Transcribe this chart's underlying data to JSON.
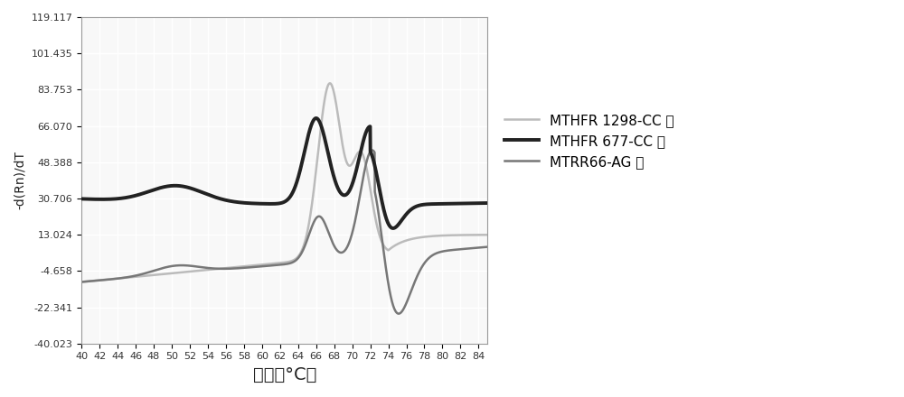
{
  "xlabel": "温度（°C）",
  "ylabel": "-d(Rn)/dT",
  "xlim": [
    40,
    85
  ],
  "ylim": [
    -40.023,
    119.117
  ],
  "xticks": [
    40,
    42,
    44,
    46,
    48,
    50,
    52,
    54,
    56,
    58,
    60,
    62,
    64,
    66,
    68,
    70,
    72,
    74,
    76,
    78,
    80,
    82,
    84
  ],
  "yticks": [
    -40.023,
    -22.341,
    -4.658,
    13.024,
    30.706,
    48.388,
    66.07,
    83.753,
    101.435,
    119.117
  ],
  "ytick_labels": [
    "-40.023",
    "-22.341",
    "-4.658",
    "13.024",
    "30.706",
    "48.388",
    "66.070",
    "83.753",
    "101.435",
    "119.117"
  ],
  "legend": [
    {
      "label": "MTHFR 1298-CC 型",
      "color": "#bbbbbb",
      "lw": 1.8
    },
    {
      "label": "MTHFR 677-CC 型",
      "color": "#222222",
      "lw": 2.8
    },
    {
      "label": "MTRR66-AG 型",
      "color": "#777777",
      "lw": 1.8
    }
  ],
  "background_color": "#f8f8f8",
  "grid_color": "#ffffff",
  "figsize": [
    10.0,
    4.4
  ],
  "dpi": 100
}
